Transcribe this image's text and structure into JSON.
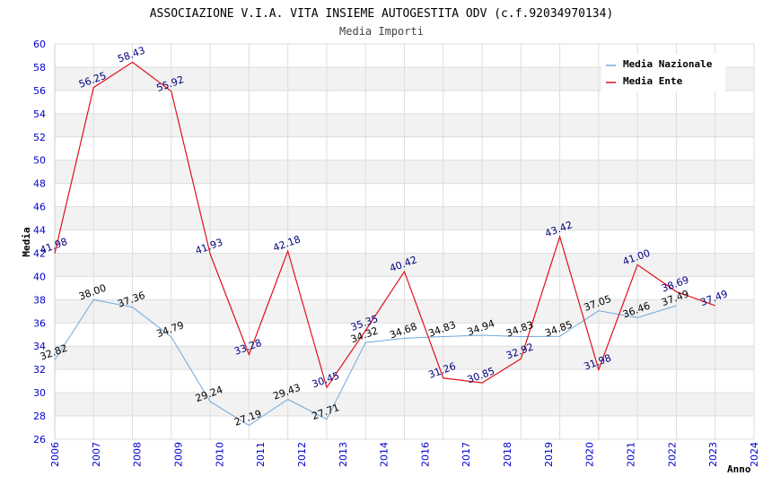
{
  "chart_data": {
    "type": "line",
    "title": "ASSOCIAZIONE V.I.A. VITA INSIEME AUTOGESTITA ODV (c.f.92034970134)",
    "subtitle": "Media Importi",
    "xlabel": "Anno",
    "ylabel": "Media",
    "ylim": [
      26,
      60
    ],
    "ytick_step": 2,
    "x": [
      "2006",
      "2007",
      "2008",
      "2009",
      "2010",
      "2011",
      "2012",
      "2013",
      "2014",
      "2015",
      "2016",
      "2017",
      "2018",
      "2019",
      "2020",
      "2021",
      "2022",
      "2023",
      "2024"
    ],
    "x_tick_labels": [
      "2006",
      "2007",
      "2008",
      "2009",
      "2010",
      "2011",
      "2012",
      "2013",
      "2014",
      "2016",
      "2017",
      "2018",
      "2019",
      "2020",
      "2021",
      "2022",
      "2023",
      "2024"
    ],
    "grid": true,
    "legend_position": "top-right",
    "colors": {
      "nazionale": "#6fa8dc",
      "ente": "#e0101a",
      "tick_text": "#0000cc",
      "ente_label": "#000080",
      "nazionale_label": "#000000",
      "band": "#f2f2f2",
      "gridline": "#dddddd"
    },
    "series": [
      {
        "name": "Media Nazionale",
        "values": [
          32.82,
          38.0,
          37.36,
          34.79,
          29.24,
          27.19,
          29.43,
          27.71,
          34.32,
          34.68,
          34.83,
          34.94,
          34.83,
          34.85,
          37.05,
          36.46,
          37.49,
          null,
          null
        ],
        "labels": [
          "32.82",
          "38.00",
          "37.36",
          "34.79",
          "29.24",
          "27.19",
          "29.43",
          "27.71",
          "34.32",
          "34.68",
          "34.83",
          "34.94",
          "34.83",
          "34.85",
          "37.05",
          "36.46",
          "37.49",
          "",
          ""
        ]
      },
      {
        "name": "Media Ente",
        "values": [
          41.98,
          56.25,
          58.43,
          55.92,
          41.93,
          33.28,
          42.18,
          30.45,
          35.35,
          40.42,
          31.26,
          30.85,
          32.92,
          43.42,
          31.98,
          41.0,
          38.69,
          37.49,
          null
        ],
        "labels": [
          "41.98",
          "56.25",
          "58.43",
          "55.92",
          "41.93",
          "33.28",
          "42.18",
          "30.45",
          "35.35",
          "40.42",
          "31.26",
          "30.85",
          "32.92",
          "43.42",
          "31.98",
          "41.00",
          "38.69",
          "37.49",
          ""
        ]
      }
    ]
  }
}
